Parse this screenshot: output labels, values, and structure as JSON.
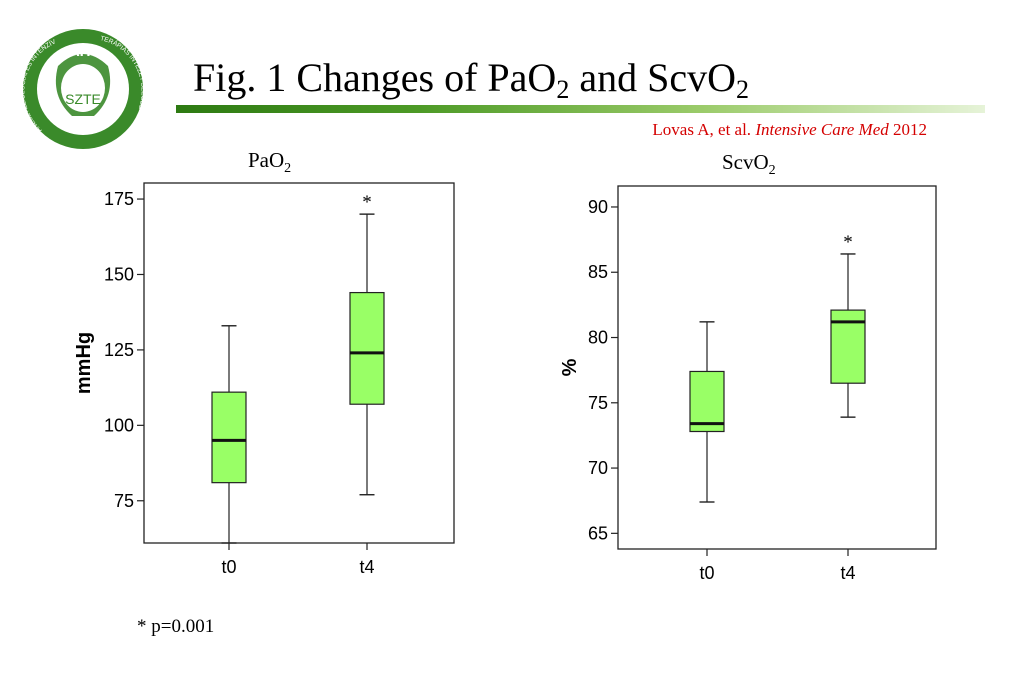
{
  "header": {
    "title_prefix": "Fig. 1  Changes of PaO",
    "title_sub1": "2",
    "title_mid": " and ScvO",
    "title_sub2": "2",
    "citation_authors": "Lovas A, et al. ",
    "citation_journal": "Intensive Care Med",
    "citation_year": " 2012"
  },
  "logo": {
    "top_text": "AITI",
    "center_text": "SZTE",
    "ring_left_text": "ANESZTEZIOLÓGIAI ÉS INTENZÍV",
    "ring_right_text": "TERÁPIÁS INTÉZET SZEGED",
    "color": "#3a8a2a"
  },
  "footnote": "* p=0.001",
  "colors": {
    "box_fill": "#99ff66",
    "accent_red": "#d40000"
  },
  "chart_data": [
    {
      "type": "box",
      "title_main": "PaO",
      "title_sub": "2",
      "ylabel": "mmHg",
      "ylim": [
        61,
        178
      ],
      "yticks": [
        75,
        100,
        125,
        150,
        175
      ],
      "categories": [
        "t0",
        "t4"
      ],
      "boxes": [
        {
          "category": "t0",
          "min": 61,
          "q1": 81,
          "median": 95,
          "q3": 111,
          "max": 133,
          "significance": ""
        },
        {
          "category": "t4",
          "min": 77,
          "q1": 107,
          "median": 124,
          "q3": 144,
          "max": 170,
          "significance": "*"
        }
      ]
    },
    {
      "type": "box",
      "title_main": "ScvO",
      "title_sub": "2",
      "ylabel": "%",
      "ylim": [
        63.8,
        91.3
      ],
      "yticks": [
        65,
        70,
        75,
        80,
        85,
        90
      ],
      "categories": [
        "t0",
        "t4"
      ],
      "boxes": [
        {
          "category": "t0",
          "min": 67.4,
          "q1": 72.8,
          "median": 73.4,
          "q3": 77.4,
          "max": 81.2,
          "significance": ""
        },
        {
          "category": "t4",
          "min": 73.9,
          "q1": 76.5,
          "median": 81.2,
          "q3": 82.1,
          "max": 86.4,
          "significance": "*"
        }
      ]
    }
  ]
}
